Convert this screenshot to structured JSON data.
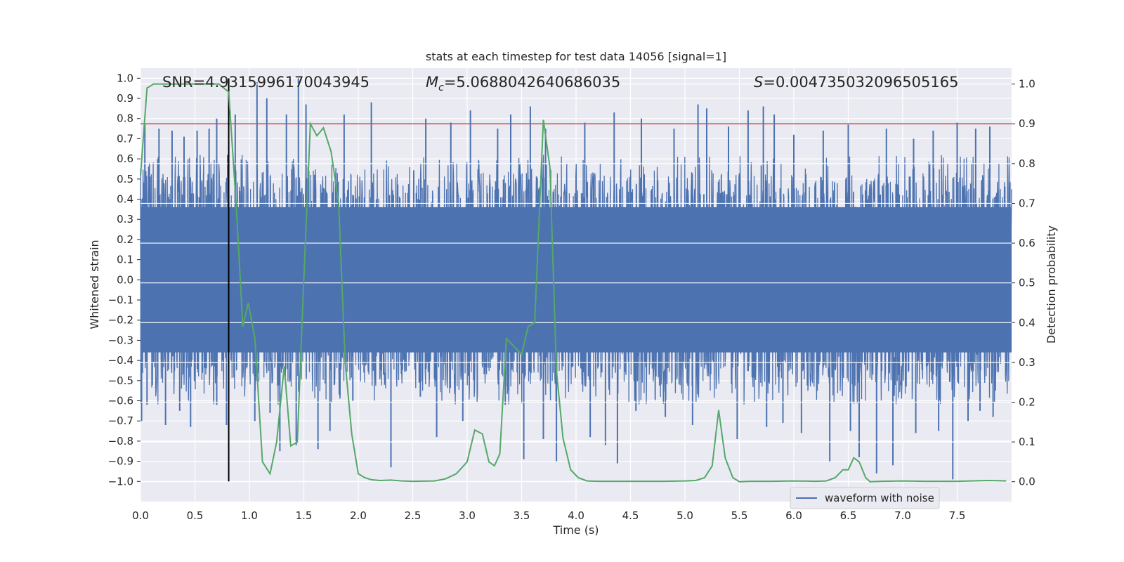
{
  "chart_data": {
    "type": "line",
    "title": "stats at each timestep for test data 14056 [signal=1]",
    "xlabel": "Time (s)",
    "ylabel": "Whitened strain",
    "y2label": "Detection probability",
    "xlim": [
      0.0,
      8.0
    ],
    "ylim": [
      -1.1,
      1.05
    ],
    "y2lim": [
      -0.05,
      1.04
    ],
    "xticks": [
      0.0,
      0.5,
      1.0,
      1.5,
      2.0,
      2.5,
      3.0,
      3.5,
      4.0,
      4.5,
      5.0,
      5.5,
      6.0,
      6.5,
      7.0,
      7.5
    ],
    "xtick_labels": [
      "0.0",
      "0.5",
      "1.0",
      "1.5",
      "2.0",
      "2.5",
      "3.0",
      "3.5",
      "4.0",
      "4.5",
      "5.0",
      "5.5",
      "6.0",
      "6.5",
      "7.0",
      "7.5"
    ],
    "yticks": [
      1.0,
      0.9,
      0.8,
      0.7,
      0.6,
      0.5,
      0.4,
      0.3,
      0.2,
      0.1,
      0.0,
      -0.1,
      -0.2,
      -0.3,
      -0.4,
      -0.5,
      -0.6,
      -0.7,
      -0.8,
      -0.9,
      -1.0
    ],
    "ytick_labels": [
      "1.0",
      "0.9",
      "0.8",
      "0.7",
      "0.6",
      "0.5",
      "0.4",
      "0.3",
      "0.2",
      "0.1",
      "0.0",
      "−0.1",
      "−0.2",
      "−0.3",
      "−0.4",
      "−0.5",
      "−0.6",
      "−0.7",
      "−0.8",
      "−0.9",
      "−1.0"
    ],
    "y2ticks": [
      1.0,
      0.9,
      0.8,
      0.7,
      0.6,
      0.5,
      0.4,
      0.3,
      0.2,
      0.1,
      0.0
    ],
    "y2tick_labels": [
      "1.0",
      "0.9",
      "0.8",
      "0.7",
      "0.6",
      "0.5",
      "0.4",
      "0.3",
      "0.2",
      "0.1",
      "0.0"
    ],
    "grid": true,
    "legend": {
      "entries": [
        "waveform with noise"
      ],
      "placement": "lower-right"
    },
    "annotations": {
      "snr": "SNR=4.9315996170043945",
      "mc_symbol": "M",
      "mc_sub": "c",
      "mc_value": "=5.0688042640686035",
      "s_symbol": "S",
      "s_value": "=0.004735032096505165"
    },
    "threshold": {
      "axis": "y2",
      "value": 0.9,
      "color": "#c44e52"
    },
    "marker_time": 0.81,
    "series": [
      {
        "name": "waveform with noise",
        "axis": "y",
        "color": "#4c72b0",
        "style": "dense-noise",
        "envelope_typical": [
          -0.4,
          0.4
        ],
        "duration": 8.0,
        "spikes_up": [
          [
            0.04,
            0.77
          ],
          [
            0.17,
            0.75
          ],
          [
            0.29,
            0.74
          ],
          [
            0.4,
            0.71
          ],
          [
            0.52,
            0.74
          ],
          [
            0.63,
            0.75
          ],
          [
            0.7,
            0.8
          ],
          [
            0.8,
            0.62
          ],
          [
            0.87,
            0.82
          ],
          [
            1.07,
            0.98
          ],
          [
            1.16,
            0.9
          ],
          [
            1.34,
            0.82
          ],
          [
            1.45,
            1.0
          ],
          [
            1.52,
            0.87
          ],
          [
            1.87,
            0.82
          ],
          [
            2.12,
            0.88
          ],
          [
            2.62,
            0.8
          ],
          [
            2.85,
            0.78
          ],
          [
            3.03,
            0.84
          ],
          [
            3.28,
            0.75
          ],
          [
            3.4,
            0.82
          ],
          [
            3.58,
            0.86
          ],
          [
            3.72,
            0.75
          ],
          [
            4.08,
            0.78
          ],
          [
            4.35,
            0.83
          ],
          [
            4.6,
            0.8
          ],
          [
            4.9,
            0.75
          ],
          [
            5.12,
            0.87
          ],
          [
            5.2,
            0.85
          ],
          [
            5.4,
            0.76
          ],
          [
            5.58,
            0.84
          ],
          [
            5.72,
            0.86
          ],
          [
            5.82,
            0.82
          ],
          [
            6.0,
            0.72
          ],
          [
            6.27,
            0.74
          ],
          [
            6.5,
            0.77
          ],
          [
            6.85,
            0.75
          ],
          [
            7.1,
            0.7
          ],
          [
            7.28,
            0.74
          ],
          [
            7.5,
            0.78
          ],
          [
            7.67,
            0.75
          ],
          [
            7.8,
            0.76
          ]
        ],
        "spikes_down": [
          [
            0.01,
            -0.7
          ],
          [
            0.06,
            -0.62
          ],
          [
            0.23,
            -0.72
          ],
          [
            0.36,
            -0.65
          ],
          [
            0.46,
            -0.73
          ],
          [
            0.7,
            -0.62
          ],
          [
            0.79,
            -0.72
          ],
          [
            1.05,
            -0.7
          ],
          [
            1.19,
            -0.66
          ],
          [
            1.28,
            -0.85
          ],
          [
            1.43,
            -0.82
          ],
          [
            1.63,
            -0.84
          ],
          [
            1.74,
            -0.75
          ],
          [
            1.95,
            -0.6
          ],
          [
            2.3,
            -0.93
          ],
          [
            2.57,
            -0.58
          ],
          [
            2.72,
            -0.78
          ],
          [
            2.96,
            -0.7
          ],
          [
            3.35,
            -0.62
          ],
          [
            3.52,
            -0.89
          ],
          [
            3.7,
            -0.79
          ],
          [
            3.82,
            -0.9
          ],
          [
            4.13,
            -0.78
          ],
          [
            4.27,
            -0.82
          ],
          [
            4.38,
            -0.91
          ],
          [
            4.55,
            -0.65
          ],
          [
            4.82,
            -0.68
          ],
          [
            5.07,
            -0.72
          ],
          [
            5.48,
            -0.79
          ],
          [
            5.75,
            -0.73
          ],
          [
            5.9,
            -0.71
          ],
          [
            6.07,
            -0.76
          ],
          [
            6.33,
            -0.9
          ],
          [
            6.52,
            -0.75
          ],
          [
            6.6,
            -0.88
          ],
          [
            6.76,
            -0.96
          ],
          [
            6.91,
            -0.92
          ],
          [
            7.12,
            -0.76
          ],
          [
            7.33,
            -0.75
          ],
          [
            7.46,
            -0.99
          ],
          [
            7.6,
            -0.7
          ],
          [
            7.71,
            -0.65
          ],
          [
            7.83,
            -0.68
          ]
        ]
      },
      {
        "name": "Detection probability",
        "axis": "y2",
        "color": "#55a868",
        "x": [
          0.0,
          0.06,
          0.12,
          0.25,
          0.5,
          0.72,
          0.81,
          0.88,
          0.94,
          0.99,
          1.05,
          1.12,
          1.19,
          1.25,
          1.32,
          1.38,
          1.44,
          1.5,
          1.56,
          1.62,
          1.68,
          1.75,
          1.82,
          1.88,
          1.94,
          2.0,
          2.06,
          2.12,
          2.2,
          2.3,
          2.4,
          2.5,
          2.7,
          2.8,
          2.9,
          3.0,
          3.07,
          3.14,
          3.2,
          3.25,
          3.3,
          3.36,
          3.43,
          3.5,
          3.56,
          3.62,
          3.7,
          3.76,
          3.82,
          3.88,
          3.95,
          4.02,
          4.1,
          4.2,
          4.4,
          4.6,
          4.8,
          5.0,
          5.1,
          5.18,
          5.25,
          5.31,
          5.37,
          5.44,
          5.5,
          5.6,
          5.8,
          6.0,
          6.2,
          6.3,
          6.38,
          6.45,
          6.5,
          6.55,
          6.6,
          6.66,
          6.7,
          6.8,
          7.0,
          7.2,
          7.5,
          7.8,
          7.95
        ],
        "values": [
          0.77,
          0.99,
          1.0,
          1.0,
          1.0,
          1.0,
          0.98,
          0.69,
          0.39,
          0.45,
          0.36,
          0.05,
          0.02,
          0.1,
          0.29,
          0.09,
          0.1,
          0.51,
          0.9,
          0.87,
          0.89,
          0.83,
          0.7,
          0.3,
          0.12,
          0.02,
          0.01,
          0.005,
          0.003,
          0.004,
          0.002,
          0.001,
          0.002,
          0.007,
          0.02,
          0.05,
          0.13,
          0.12,
          0.05,
          0.04,
          0.07,
          0.36,
          0.34,
          0.32,
          0.39,
          0.4,
          0.91,
          0.79,
          0.28,
          0.11,
          0.03,
          0.01,
          0.002,
          0.001,
          0.001,
          0.001,
          0.001,
          0.002,
          0.003,
          0.01,
          0.04,
          0.18,
          0.06,
          0.01,
          0.0,
          0.001,
          0.001,
          0.002,
          0.001,
          0.002,
          0.01,
          0.03,
          0.03,
          0.06,
          0.05,
          0.01,
          0.0,
          0.001,
          0.002,
          0.001,
          0.001,
          0.003,
          0.002
        ]
      }
    ]
  }
}
